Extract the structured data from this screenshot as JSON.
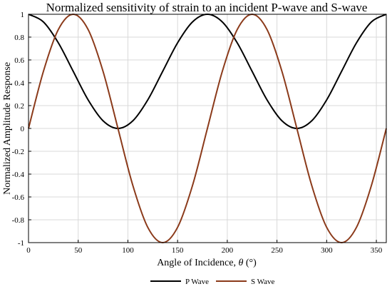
{
  "chart_data": {
    "type": "line",
    "title": "Normalized sensitivity of strain to an incident P-wave and S-wave",
    "xlabel_text": "Angle of Incidence, ",
    "xlabel_symbol": "θ",
    "xlabel_unit": " (°)",
    "ylabel": "Normalized Amplitude Response",
    "xlim": [
      0,
      360
    ],
    "ylim": [
      -1,
      1
    ],
    "xticks": [
      0,
      50,
      100,
      150,
      200,
      250,
      300,
      350
    ],
    "yticks": [
      1,
      0.8,
      0.6,
      0.4,
      0.2,
      0,
      -0.2,
      -0.4,
      -0.6,
      -0.8,
      -1
    ],
    "grid": true,
    "legend_position": "bottom-center",
    "x": [
      0,
      15,
      30,
      45,
      60,
      75,
      90,
      105,
      120,
      135,
      150,
      165,
      180,
      195,
      210,
      225,
      240,
      255,
      270,
      285,
      300,
      315,
      330,
      345,
      360
    ],
    "series": [
      {
        "name": "P Wave",
        "color": "#000000",
        "values": [
          1,
          0.933,
          0.75,
          0.5,
          0.25,
          0.067,
          0,
          0.067,
          0.25,
          0.5,
          0.75,
          0.933,
          1,
          0.933,
          0.75,
          0.5,
          0.25,
          0.067,
          0,
          0.067,
          0.25,
          0.5,
          0.75,
          0.933,
          1
        ]
      },
      {
        "name": "S Wave",
        "color": "#8b3a1a",
        "values": [
          0,
          0.5,
          0.866,
          1,
          0.866,
          0.5,
          0,
          -0.5,
          -0.866,
          -1,
          -0.866,
          -0.5,
          0,
          0.5,
          0.866,
          1,
          0.866,
          0.5,
          0,
          -0.5,
          -0.866,
          -1,
          -0.866,
          -0.5,
          0
        ]
      }
    ]
  }
}
